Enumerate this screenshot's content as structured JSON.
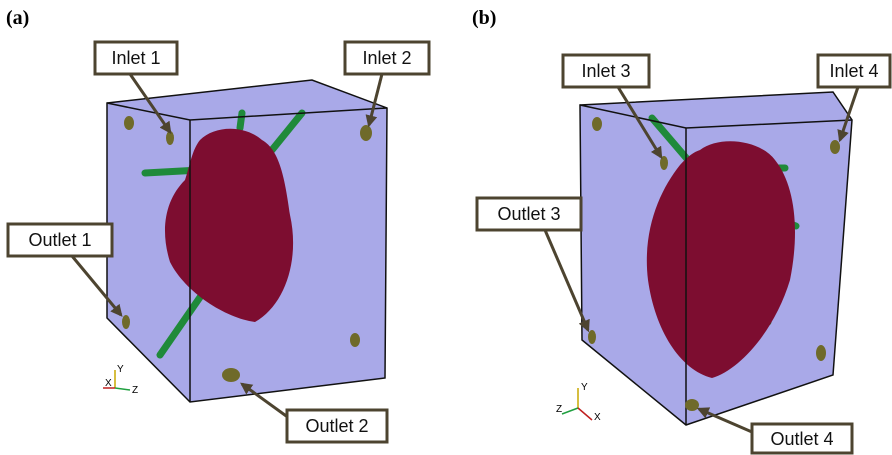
{
  "panels": [
    {
      "label": "(a)",
      "callouts": [
        "Inlet 1",
        "Inlet 2",
        "Outlet 1",
        "Outlet 2"
      ],
      "axes": [
        "Y",
        "X",
        "Z"
      ]
    },
    {
      "label": "(b)",
      "callouts": [
        "Inlet 3",
        "Inlet 4",
        "Outlet 3",
        "Outlet 4"
      ],
      "axes": [
        "Y",
        "Z",
        "X"
      ]
    }
  ]
}
